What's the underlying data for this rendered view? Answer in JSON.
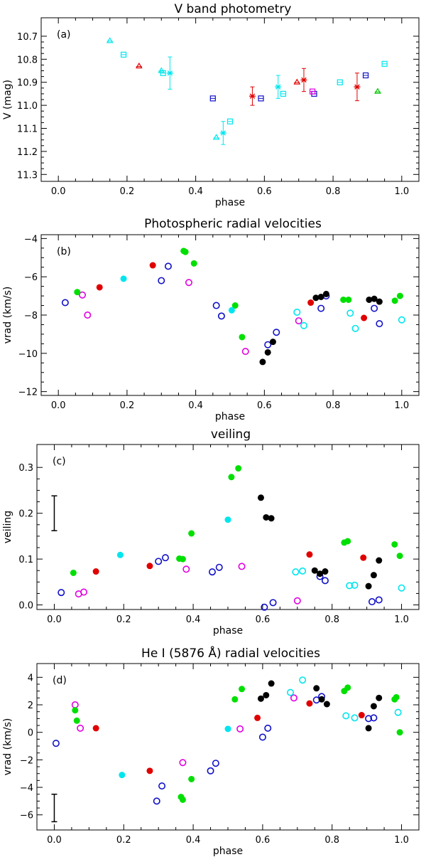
{
  "chart_data": [
    {
      "type": "scatter",
      "title": "V band photometry",
      "panel_label": "(a)",
      "xlabel": "phase",
      "ylabel": "V (mag)",
      "xlim": [
        -0.05,
        1.05
      ],
      "ylim": [
        11.33,
        10.62
      ],
      "xticks": [
        0.0,
        0.2,
        0.4,
        0.6,
        0.8,
        1.0
      ],
      "xtick_labels": [
        "0.0",
        "0.2",
        "0.4",
        "0.6",
        "0.8",
        "1.0"
      ],
      "yticks": [
        10.7,
        10.8,
        10.9,
        11.0,
        11.1,
        11.2,
        11.3
      ],
      "ytick_labels": [
        "10.7",
        "10.8",
        "10.9",
        "11.0",
        "11.1",
        "11.2",
        "11.3"
      ],
      "series": [
        {
          "name": "cyan triangles",
          "marker": "triangle",
          "color": "#00e5ee",
          "points": [
            [
              0.15,
              10.72
            ],
            [
              0.3,
              10.85
            ],
            [
              0.46,
              11.14
            ]
          ]
        },
        {
          "name": "red triangles",
          "marker": "triangle",
          "color": "#e00000",
          "points": [
            [
              0.235,
              10.83
            ],
            [
              0.695,
              10.9
            ]
          ]
        },
        {
          "name": "green triangles",
          "marker": "triangle",
          "color": "#00c800",
          "points": [
            [
              0.93,
              10.94
            ]
          ]
        },
        {
          "name": "cyan squares",
          "marker": "square",
          "color": "#00e5ee",
          "points": [
            [
              0.19,
              10.78
            ],
            [
              0.305,
              10.86
            ],
            [
              0.5,
              11.07
            ],
            [
              0.655,
              10.95
            ],
            [
              0.82,
              10.9
            ],
            [
              0.95,
              10.82
            ]
          ]
        },
        {
          "name": "blue squares",
          "marker": "square",
          "color": "#1010c8",
          "points": [
            [
              0.45,
              10.97
            ],
            [
              0.59,
              10.97
            ],
            [
              0.745,
              10.95
            ],
            [
              0.895,
              10.87
            ]
          ]
        },
        {
          "name": "magenta squares",
          "marker": "square",
          "color": "#e000e0",
          "points": [
            [
              0.74,
              10.94
            ]
          ]
        },
        {
          "name": "cyan stars",
          "marker": "star",
          "color": "#00e5ee",
          "points": [
            [
              0.325,
              10.86,
              0.07
            ],
            [
              0.48,
              11.12,
              0.05
            ],
            [
              0.64,
              10.92,
              0.05
            ]
          ]
        },
        {
          "name": "red stars",
          "marker": "star",
          "color": "#e00000",
          "points": [
            [
              0.565,
              10.96,
              0.04
            ],
            [
              0.715,
              10.89,
              0.05
            ],
            [
              0.87,
              10.92,
              0.06
            ]
          ]
        }
      ]
    },
    {
      "type": "scatter",
      "title": "Photospheric radial velocities",
      "panel_label": "(b)",
      "xlabel": "phase",
      "ylabel": "vrad (km/s)",
      "xlim": [
        -0.05,
        1.05
      ],
      "ylim": [
        -12.2,
        -3.8
      ],
      "xticks": [
        0.0,
        0.2,
        0.4,
        0.6,
        0.8,
        1.0
      ],
      "xtick_labels": [
        "0.0",
        "0.2",
        "0.4",
        "0.6",
        "0.8",
        "1.0"
      ],
      "yticks": [
        -4,
        -6,
        -8,
        -10,
        -12
      ],
      "ytick_labels": [
        "−4",
        "−6",
        "−8",
        "−10",
        "−12"
      ],
      "series": [
        {
          "name": "blue open",
          "marker": "open",
          "color": "#1010c8",
          "points": [
            [
              0.02,
              -7.35
            ],
            [
              0.32,
              -5.45
            ],
            [
              0.3,
              -6.2
            ],
            [
              0.46,
              -7.5
            ],
            [
              0.475,
              -8.05
            ],
            [
              0.61,
              -9.55
            ],
            [
              0.635,
              -8.9
            ],
            [
              0.765,
              -7.65
            ],
            [
              0.78,
              -7.0
            ],
            [
              0.92,
              -7.65
            ],
            [
              0.935,
              -8.45
            ]
          ]
        },
        {
          "name": "magenta open",
          "marker": "open",
          "color": "#e000e0",
          "points": [
            [
              0.07,
              -6.95
            ],
            [
              0.085,
              -8.0
            ],
            [
              0.38,
              -6.3
            ],
            [
              0.545,
              -9.9
            ],
            [
              0.7,
              -8.3
            ]
          ]
        },
        {
          "name": "cyan open",
          "marker": "open",
          "color": "#00e5ee",
          "points": [
            [
              0.695,
              -7.85
            ],
            [
              0.715,
              -8.55
            ],
            [
              0.85,
              -7.9
            ],
            [
              0.865,
              -8.7
            ],
            [
              1.0,
              -8.25
            ]
          ]
        },
        {
          "name": "green filled",
          "marker": "filled",
          "color": "#00e000",
          "points": [
            [
              0.055,
              -6.8
            ],
            [
              0.365,
              -4.65
            ],
            [
              0.37,
              -4.7
            ],
            [
              0.395,
              -5.3
            ],
            [
              0.515,
              -7.5
            ],
            [
              0.535,
              -9.15
            ],
            [
              0.83,
              -7.2
            ],
            [
              0.845,
              -7.2
            ],
            [
              0.98,
              -7.25
            ],
            [
              0.995,
              -7.0
            ]
          ]
        },
        {
          "name": "red filled",
          "marker": "filled",
          "color": "#e00000",
          "points": [
            [
              0.12,
              -6.55
            ],
            [
              0.275,
              -5.4
            ],
            [
              0.735,
              -7.35
            ],
            [
              0.89,
              -8.15
            ]
          ]
        },
        {
          "name": "cyan filled",
          "marker": "filled",
          "color": "#00e5ee",
          "points": [
            [
              0.19,
              -6.1
            ],
            [
              0.505,
              -7.75
            ]
          ]
        },
        {
          "name": "black filled",
          "marker": "filled",
          "color": "#000000",
          "points": [
            [
              0.595,
              -10.45
            ],
            [
              0.61,
              -9.95
            ],
            [
              0.625,
              -9.4
            ],
            [
              0.75,
              -7.1
            ],
            [
              0.765,
              -7.05
            ],
            [
              0.78,
              -6.9
            ],
            [
              0.905,
              -7.2
            ],
            [
              0.92,
              -7.15
            ],
            [
              0.935,
              -7.3
            ]
          ]
        }
      ]
    },
    {
      "type": "scatter",
      "title": "veiling",
      "panel_label": "(c)",
      "xlabel": "phase",
      "ylabel": "veiling",
      "xlim": [
        -0.05,
        1.05
      ],
      "ylim": [
        -0.01,
        0.35
      ],
      "xticks": [
        0.0,
        0.2,
        0.4,
        0.6,
        0.8,
        1.0
      ],
      "xtick_labels": [
        "0.0",
        "0.2",
        "0.4",
        "0.6",
        "0.8",
        "1.0"
      ],
      "yticks": [
        0.0,
        0.1,
        0.2,
        0.3
      ],
      "ytick_labels": [
        "0.0",
        "0.1",
        "0.2",
        "0.3"
      ],
      "error_bar": {
        "x": 0.0,
        "y": 0.2,
        "err": 0.038
      },
      "series": [
        {
          "name": "blue open",
          "marker": "open",
          "color": "#1010c8",
          "points": [
            [
              0.02,
              0.027
            ],
            [
              0.3,
              0.095
            ],
            [
              0.32,
              0.103
            ],
            [
              0.455,
              0.072
            ],
            [
              0.475,
              0.082
            ],
            [
              0.605,
              -0.005
            ],
            [
              0.63,
              0.005
            ],
            [
              0.765,
              0.062
            ],
            [
              0.78,
              0.053
            ],
            [
              0.915,
              0.007
            ],
            [
              0.935,
              0.011
            ]
          ]
        },
        {
          "name": "magenta open",
          "marker": "open",
          "color": "#e000e0",
          "points": [
            [
              0.07,
              0.024
            ],
            [
              0.085,
              0.028
            ],
            [
              0.38,
              0.078
            ],
            [
              0.54,
              0.084
            ],
            [
              0.7,
              0.009
            ]
          ]
        },
        {
          "name": "cyan open",
          "marker": "open",
          "color": "#00e5ee",
          "points": [
            [
              0.695,
              0.072
            ],
            [
              0.715,
              0.074
            ],
            [
              0.85,
              0.042
            ],
            [
              0.865,
              0.043
            ],
            [
              1.0,
              0.037
            ]
          ]
        },
        {
          "name": "green filled",
          "marker": "filled",
          "color": "#00e000",
          "points": [
            [
              0.055,
              0.07
            ],
            [
              0.36,
              0.101
            ],
            [
              0.37,
              0.1
            ],
            [
              0.395,
              0.156
            ],
            [
              0.51,
              0.279
            ],
            [
              0.53,
              0.298
            ],
            [
              0.835,
              0.136
            ],
            [
              0.845,
              0.139
            ],
            [
              0.98,
              0.132
            ],
            [
              0.995,
              0.107
            ]
          ]
        },
        {
          "name": "red filled",
          "marker": "filled",
          "color": "#e00000",
          "points": [
            [
              0.12,
              0.073
            ],
            [
              0.275,
              0.085
            ],
            [
              0.735,
              0.11
            ],
            [
              0.89,
              0.103
            ]
          ]
        },
        {
          "name": "cyan filled",
          "marker": "filled",
          "color": "#00e5ee",
          "points": [
            [
              0.19,
              0.109
            ],
            [
              0.5,
              0.186
            ]
          ]
        },
        {
          "name": "black filled",
          "marker": "filled",
          "color": "#000000",
          "points": [
            [
              0.595,
              0.234
            ],
            [
              0.61,
              0.191
            ],
            [
              0.625,
              0.189
            ],
            [
              0.75,
              0.075
            ],
            [
              0.765,
              0.068
            ],
            [
              0.78,
              0.073
            ],
            [
              0.905,
              0.041
            ],
            [
              0.92,
              0.065
            ],
            [
              0.935,
              0.097
            ]
          ]
        }
      ]
    },
    {
      "type": "scatter",
      "title": "He I (5876 Å) radial velocities",
      "panel_label": "(d)",
      "xlabel": "phase",
      "ylabel": "vrad (km/s)",
      "xlim": [
        -0.05,
        1.05
      ],
      "ylim": [
        -7.1,
        5.0
      ],
      "xticks": [
        0.0,
        0.2,
        0.4,
        0.6,
        0.8,
        1.0
      ],
      "xtick_labels": [
        "0.0",
        "0.2",
        "0.4",
        "0.6",
        "0.8",
        "1.0"
      ],
      "yticks": [
        4,
        2,
        0,
        -2,
        -4,
        -6
      ],
      "ytick_labels": [
        "4",
        "2",
        "0",
        "−2",
        "−4",
        "−6"
      ],
      "error_bar": {
        "x": 0.0,
        "y": -5.5,
        "err": 1.0
      },
      "series": [
        {
          "name": "blue open",
          "marker": "open",
          "color": "#1010c8",
          "points": [
            [
              0.005,
              -0.8
            ],
            [
              0.295,
              -5.0
            ],
            [
              0.31,
              -3.9
            ],
            [
              0.45,
              -2.8
            ],
            [
              0.465,
              -2.25
            ],
            [
              0.6,
              -0.35
            ],
            [
              0.615,
              0.3
            ],
            [
              0.755,
              2.35
            ],
            [
              0.77,
              2.6
            ],
            [
              0.905,
              1.0
            ],
            [
              0.92,
              1.05
            ]
          ]
        },
        {
          "name": "magenta open",
          "marker": "open",
          "color": "#e000e0",
          "points": [
            [
              0.06,
              2.0
            ],
            [
              0.075,
              0.3
            ],
            [
              0.37,
              -2.2
            ],
            [
              0.535,
              0.25
            ],
            [
              0.69,
              2.5
            ]
          ]
        },
        {
          "name": "cyan open",
          "marker": "open",
          "color": "#00e5ee",
          "points": [
            [
              0.68,
              2.9
            ],
            [
              0.715,
              3.8
            ],
            [
              0.84,
              1.2
            ],
            [
              0.865,
              1.05
            ],
            [
              0.99,
              1.45
            ]
          ]
        },
        {
          "name": "green filled",
          "marker": "filled",
          "color": "#00e000",
          "points": [
            [
              0.06,
              1.6
            ],
            [
              0.065,
              0.85
            ],
            [
              0.365,
              -4.7
            ],
            [
              0.37,
              -4.9
            ],
            [
              0.395,
              -3.4
            ],
            [
              0.52,
              2.4
            ],
            [
              0.54,
              3.15
            ],
            [
              0.835,
              3.0
            ],
            [
              0.845,
              3.25
            ],
            [
              0.98,
              2.4
            ],
            [
              0.985,
              2.55
            ],
            [
              0.995,
              0.0
            ]
          ]
        },
        {
          "name": "red filled",
          "marker": "filled",
          "color": "#e00000",
          "points": [
            [
              0.12,
              0.3
            ],
            [
              0.275,
              -2.8
            ],
            [
              0.585,
              1.05
            ],
            [
              0.735,
              2.1
            ],
            [
              0.885,
              1.25
            ]
          ]
        },
        {
          "name": "cyan filled",
          "marker": "filled",
          "color": "#00e5ee",
          "points": [
            [
              0.195,
              -3.1
            ],
            [
              0.5,
              0.25
            ]
          ]
        },
        {
          "name": "black filled",
          "marker": "filled",
          "color": "#000000",
          "points": [
            [
              0.595,
              2.45
            ],
            [
              0.61,
              2.7
            ],
            [
              0.625,
              3.55
            ],
            [
              0.755,
              3.2
            ],
            [
              0.77,
              2.4
            ],
            [
              0.785,
              2.05
            ],
            [
              0.905,
              0.3
            ],
            [
              0.92,
              1.9
            ],
            [
              0.935,
              2.5
            ]
          ]
        }
      ]
    }
  ]
}
